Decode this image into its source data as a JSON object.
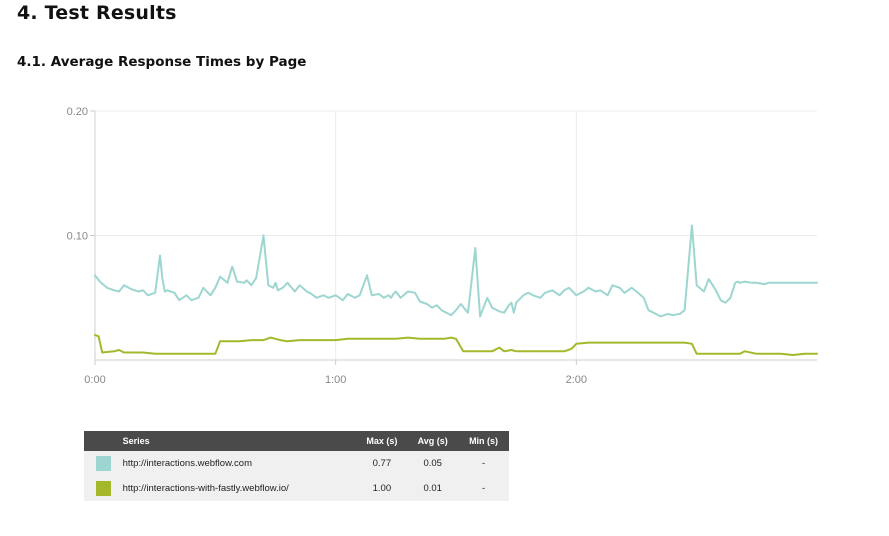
{
  "heading": "4. Test Results",
  "subheading": "4.1. Average Response Times by Page",
  "chart_data": {
    "type": "line",
    "x_unit": "minutes",
    "x_ticks": [
      "0:00",
      "1:00",
      "2:00"
    ],
    "y_ticks": [
      "0.20",
      "0.10"
    ],
    "ylim": [
      0,
      0.2
    ],
    "xlim": [
      0,
      3.0
    ],
    "grid": true,
    "series": [
      {
        "name": "http://interactions.webflow.com",
        "color": "#9dd6d0",
        "x": [
          0,
          0.02,
          0.05,
          0.08,
          0.1,
          0.12,
          0.15,
          0.18,
          0.2,
          0.22,
          0.25,
          0.27,
          0.28,
          0.29,
          0.3,
          0.33,
          0.35,
          0.38,
          0.4,
          0.43,
          0.45,
          0.48,
          0.5,
          0.52,
          0.55,
          0.57,
          0.59,
          0.62,
          0.63,
          0.65,
          0.67,
          0.7,
          0.72,
          0.74,
          0.75,
          0.76,
          0.78,
          0.8,
          0.83,
          0.85,
          0.88,
          0.9,
          0.92,
          0.95,
          0.97,
          1.0,
          1.03,
          1.05,
          1.08,
          1.1,
          1.13,
          1.15,
          1.18,
          1.2,
          1.22,
          1.23,
          1.24,
          1.25,
          1.27,
          1.3,
          1.33,
          1.35,
          1.38,
          1.4,
          1.42,
          1.44,
          1.46,
          1.48,
          1.5,
          1.52,
          1.55,
          1.58,
          1.6,
          1.63,
          1.65,
          1.68,
          1.7,
          1.72,
          1.73,
          1.74,
          1.75,
          1.76,
          1.78,
          1.8,
          1.82,
          1.85,
          1.87,
          1.9,
          1.93,
          1.95,
          1.97,
          2.0,
          2.03,
          2.05,
          2.08,
          2.1,
          2.13,
          2.15,
          2.18,
          2.2,
          2.23,
          2.25,
          2.28,
          2.3,
          2.33,
          2.35,
          2.38,
          2.4,
          2.43,
          2.45,
          2.48,
          2.5,
          2.53,
          2.55,
          2.58,
          2.6,
          2.62,
          2.64,
          2.66,
          2.67,
          2.68,
          2.7,
          2.73,
          2.75,
          2.78,
          2.8,
          2.83,
          2.85,
          2.88,
          2.9,
          2.93,
          2.95,
          2.98,
          3.0
        ],
        "values": [
          0.068,
          0.063,
          0.058,
          0.056,
          0.055,
          0.06,
          0.057,
          0.055,
          0.056,
          0.052,
          0.054,
          0.084,
          0.065,
          0.055,
          0.056,
          0.054,
          0.048,
          0.052,
          0.048,
          0.05,
          0.058,
          0.052,
          0.058,
          0.067,
          0.062,
          0.075,
          0.063,
          0.062,
          0.064,
          0.06,
          0.066,
          0.1,
          0.06,
          0.058,
          0.062,
          0.056,
          0.058,
          0.062,
          0.055,
          0.06,
          0.055,
          0.053,
          0.05,
          0.052,
          0.05,
          0.052,
          0.048,
          0.053,
          0.05,
          0.052,
          0.068,
          0.052,
          0.053,
          0.05,
          0.052,
          0.05,
          0.053,
          0.055,
          0.05,
          0.055,
          0.054,
          0.047,
          0.045,
          0.042,
          0.044,
          0.04,
          0.038,
          0.036,
          0.04,
          0.045,
          0.038,
          0.09,
          0.035,
          0.05,
          0.042,
          0.039,
          0.038,
          0.044,
          0.046,
          0.038,
          0.046,
          0.048,
          0.052,
          0.054,
          0.052,
          0.05,
          0.054,
          0.056,
          0.052,
          0.056,
          0.058,
          0.052,
          0.055,
          0.058,
          0.055,
          0.056,
          0.052,
          0.06,
          0.058,
          0.054,
          0.058,
          0.055,
          0.05,
          0.04,
          0.037,
          0.035,
          0.037,
          0.036,
          0.037,
          0.04,
          0.108,
          0.06,
          0.055,
          0.065,
          0.056,
          0.048,
          0.046,
          0.05,
          0.062,
          0.063,
          0.062,
          0.063,
          0.062,
          0.062,
          0.061,
          0.062,
          0.062,
          0.062,
          0.062,
          0.062,
          0.062,
          0.062,
          0.062,
          0.062
        ]
      },
      {
        "name": "http://interactions-with-fastly.webflow.io/",
        "color": "#a5b82c",
        "x": [
          0,
          0.015,
          0.03,
          0.08,
          0.1,
          0.12,
          0.15,
          0.2,
          0.25,
          0.3,
          0.35,
          0.4,
          0.45,
          0.48,
          0.5,
          0.52,
          0.55,
          0.6,
          0.65,
          0.7,
          0.73,
          0.75,
          0.77,
          0.8,
          0.85,
          0.9,
          0.95,
          1.0,
          1.05,
          1.1,
          1.15,
          1.2,
          1.25,
          1.3,
          1.35,
          1.4,
          1.45,
          1.48,
          1.5,
          1.53,
          1.55,
          1.6,
          1.65,
          1.68,
          1.7,
          1.73,
          1.75,
          1.8,
          1.85,
          1.9,
          1.95,
          1.98,
          2.0,
          2.05,
          2.1,
          2.15,
          2.2,
          2.25,
          2.3,
          2.35,
          2.4,
          2.45,
          2.48,
          2.5,
          2.53,
          2.55,
          2.6,
          2.65,
          2.68,
          2.7,
          2.75,
          2.8,
          2.85,
          2.9,
          2.95,
          3.0
        ],
        "values": [
          0.02,
          0.019,
          0.006,
          0.007,
          0.008,
          0.006,
          0.006,
          0.006,
          0.005,
          0.005,
          0.005,
          0.005,
          0.005,
          0.005,
          0.005,
          0.015,
          0.015,
          0.015,
          0.016,
          0.016,
          0.018,
          0.017,
          0.016,
          0.015,
          0.016,
          0.016,
          0.016,
          0.016,
          0.017,
          0.017,
          0.017,
          0.017,
          0.017,
          0.018,
          0.017,
          0.017,
          0.017,
          0.018,
          0.017,
          0.007,
          0.007,
          0.007,
          0.007,
          0.01,
          0.007,
          0.008,
          0.007,
          0.007,
          0.007,
          0.007,
          0.007,
          0.009,
          0.013,
          0.014,
          0.014,
          0.014,
          0.014,
          0.014,
          0.014,
          0.014,
          0.014,
          0.014,
          0.013,
          0.005,
          0.005,
          0.005,
          0.005,
          0.005,
          0.005,
          0.007,
          0.005,
          0.005,
          0.005,
          0.004,
          0.005,
          0.005
        ]
      }
    ]
  },
  "legend": {
    "headers": {
      "series": "Series",
      "max": "Max (s)",
      "avg": "Avg (s)",
      "min": "Min (s)"
    },
    "rows": [
      {
        "color": "#9dd6d0",
        "name": "http://interactions.webflow.com",
        "max": "0.77",
        "avg": "0.05",
        "min": "-"
      },
      {
        "color": "#a5b82c",
        "name": "http://interactions-with-fastly.webflow.io/",
        "max": "1.00",
        "avg": "0.01",
        "min": "-"
      }
    ]
  }
}
